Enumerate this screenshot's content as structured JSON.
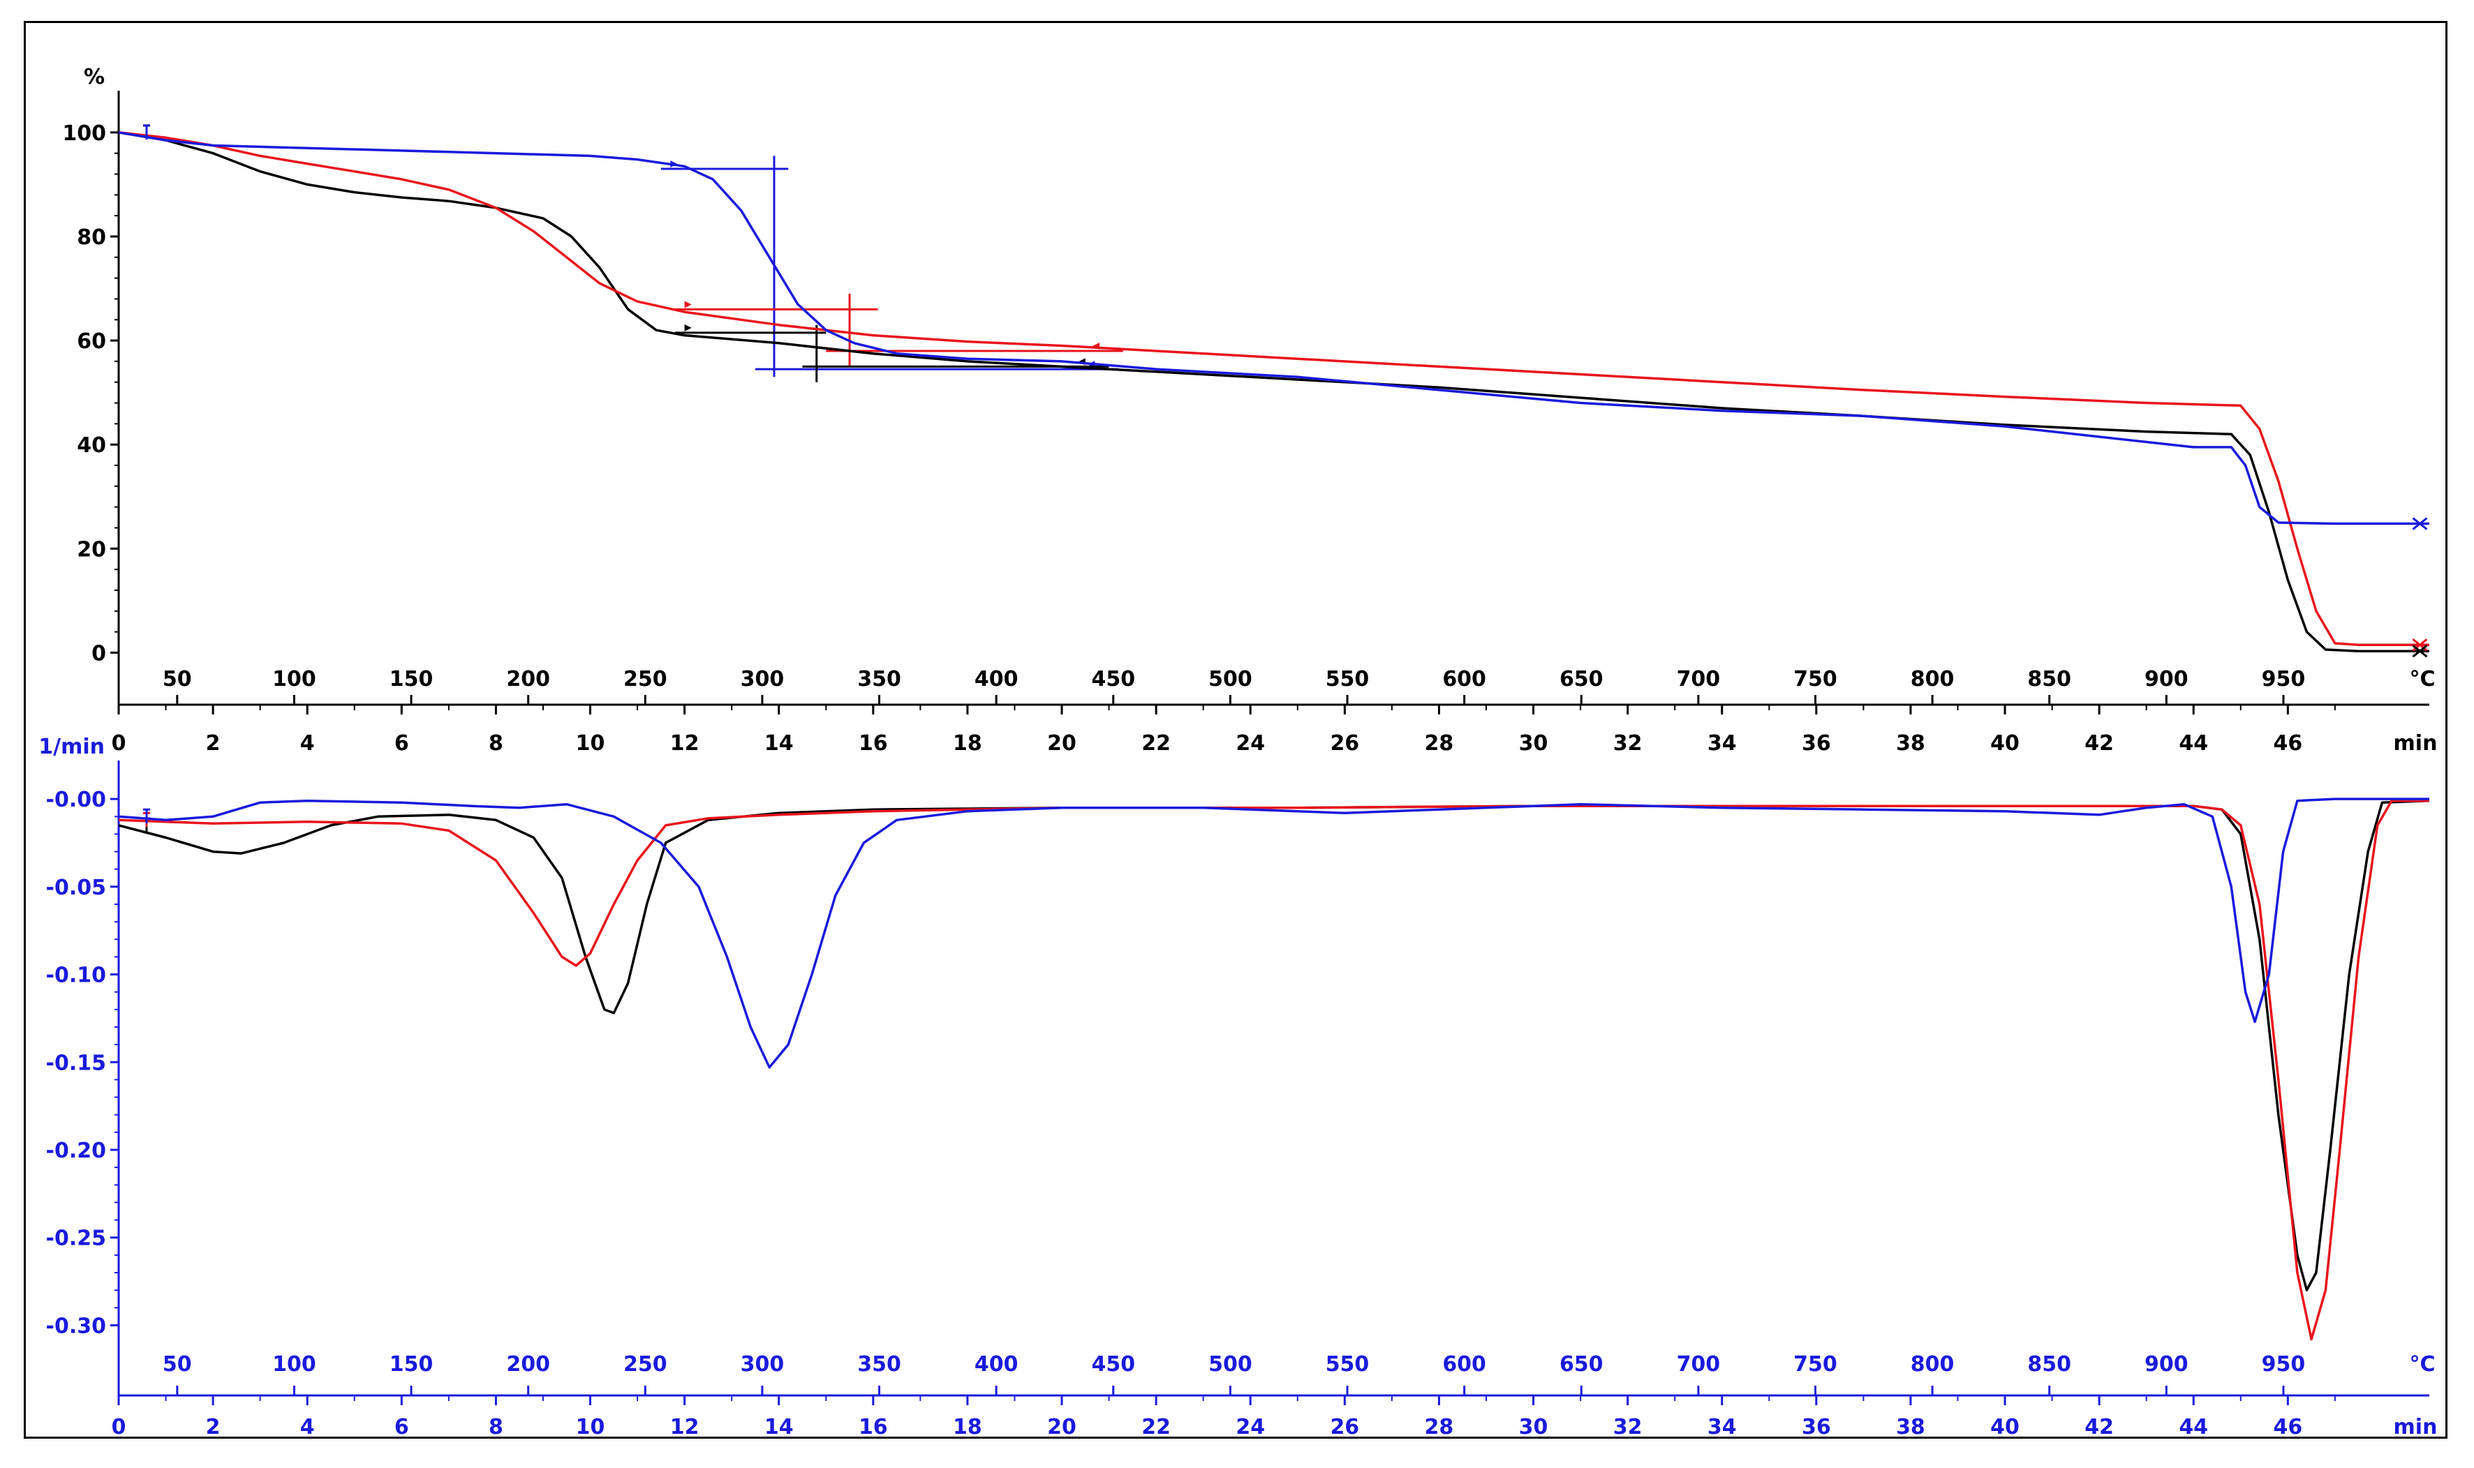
{
  "colors": {
    "black": "#000000",
    "red": "#e8141c",
    "blue": "#1a1adc",
    "lower_axis": "#1a1adc",
    "frame": "#000000"
  },
  "chart_data": [
    {
      "type": "line",
      "ylabel": "%",
      "ylim": [
        -10,
        104
      ],
      "yticks": [
        100,
        80,
        60,
        40,
        20,
        0
      ],
      "temp_axis": {
        "unit": "°C",
        "ticks": [
          50,
          100,
          150,
          200,
          250,
          300,
          350,
          400,
          450,
          500,
          550,
          600,
          650,
          700,
          750,
          800,
          850,
          900,
          950
        ]
      },
      "time_axis": {
        "unit": "min",
        "ticks": [
          0,
          2,
          4,
          6,
          8,
          10,
          12,
          14,
          16,
          18,
          20,
          22,
          24,
          26,
          28,
          30,
          32,
          34,
          36,
          38,
          40,
          42,
          44,
          46
        ]
      },
      "xlim_min": [
        0,
        49
      ],
      "series": [
        {
          "color": "black",
          "points": [
            [
              0,
              100
            ],
            [
              1,
              98.5
            ],
            [
              2,
              96
            ],
            [
              3,
              92.5
            ],
            [
              4,
              90
            ],
            [
              5,
              88.5
            ],
            [
              6,
              87.5
            ],
            [
              7,
              86.8
            ],
            [
              8,
              85.5
            ],
            [
              9,
              83.5
            ],
            [
              9.6,
              80
            ],
            [
              10.2,
              74
            ],
            [
              10.8,
              66
            ],
            [
              11.4,
              62
            ],
            [
              12,
              61
            ],
            [
              14,
              59.5
            ],
            [
              16,
              57.5
            ],
            [
              18,
              56
            ],
            [
              20,
              55
            ],
            [
              22,
              54
            ],
            [
              25,
              52.5
            ],
            [
              28,
              51
            ],
            [
              31,
              49
            ],
            [
              34,
              47
            ],
            [
              37,
              45.5
            ],
            [
              40,
              43.8
            ],
            [
              43,
              42.5
            ],
            [
              44.8,
              42
            ],
            [
              45.2,
              38
            ],
            [
              45.6,
              27
            ],
            [
              46,
              14
            ],
            [
              46.4,
              4
            ],
            [
              46.8,
              0.6
            ],
            [
              47.5,
              0.3
            ],
            [
              49,
              0.3
            ]
          ]
        },
        {
          "color": "red",
          "points": [
            [
              0,
              100
            ],
            [
              1,
              99
            ],
            [
              2,
              97.5
            ],
            [
              3,
              95.5
            ],
            [
              4,
              94
            ],
            [
              5,
              92.5
            ],
            [
              6,
              91
            ],
            [
              7,
              89
            ],
            [
              8,
              85.5
            ],
            [
              8.8,
              81
            ],
            [
              9.5,
              76
            ],
            [
              10.2,
              71
            ],
            [
              11,
              67.5
            ],
            [
              12,
              65.5
            ],
            [
              14,
              63
            ],
            [
              16,
              61
            ],
            [
              18,
              59.8
            ],
            [
              20,
              59
            ],
            [
              22,
              58
            ],
            [
              25,
              56.5
            ],
            [
              28,
              55
            ],
            [
              31,
              53.5
            ],
            [
              34,
              52
            ],
            [
              37,
              50.5
            ],
            [
              40,
              49.2
            ],
            [
              43,
              48
            ],
            [
              45,
              47.5
            ],
            [
              45.4,
              43
            ],
            [
              45.8,
              33
            ],
            [
              46.2,
              20
            ],
            [
              46.6,
              8
            ],
            [
              47,
              1.8
            ],
            [
              47.5,
              1.5
            ],
            [
              49,
              1.5
            ]
          ]
        },
        {
          "color": "blue",
          "points": [
            [
              0,
              100
            ],
            [
              1,
              98.5
            ],
            [
              2,
              97.5
            ],
            [
              4,
              97
            ],
            [
              6,
              96.5
            ],
            [
              8,
              96
            ],
            [
              10,
              95.5
            ],
            [
              11,
              94.8
            ],
            [
              12,
              93.5
            ],
            [
              12.6,
              91
            ],
            [
              13.2,
              85
            ],
            [
              13.8,
              76
            ],
            [
              14.4,
              67
            ],
            [
              15,
              62
            ],
            [
              15.6,
              59.5
            ],
            [
              16.5,
              57.5
            ],
            [
              18,
              56.5
            ],
            [
              20,
              56
            ],
            [
              22,
              54.5
            ],
            [
              25,
              53
            ],
            [
              28,
              50.5
            ],
            [
              31,
              48
            ],
            [
              34,
              46.5
            ],
            [
              37,
              45.5
            ],
            [
              40,
              43.5
            ],
            [
              42,
              41.5
            ],
            [
              44,
              39.5
            ],
            [
              44.8,
              39.5
            ],
            [
              45.1,
              36
            ],
            [
              45.4,
              28
            ],
            [
              45.8,
              25
            ],
            [
              47,
              24.8
            ],
            [
              49,
              24.8
            ]
          ]
        }
      ],
      "annotations": [
        {
          "color": "blue",
          "hline": {
            "y": 93,
            "x": [
              11.5,
              14.2
            ]
          },
          "vline": {
            "x": 13.9,
            "y": [
              53,
              95.5
            ]
          },
          "hline2": {
            "y": 54.5,
            "x": [
              13.5,
              21.2
            ]
          }
        },
        {
          "color": "red",
          "hline": {
            "y": 66,
            "x": [
              11.8,
              16.1
            ]
          },
          "vline": {
            "x": 15.5,
            "y": [
              55,
              69
            ]
          },
          "hline2": {
            "y": 58,
            "x": [
              15,
              21.3
            ]
          }
        },
        {
          "color": "black",
          "hline": {
            "y": 61.5,
            "x": [
              11.8,
              15
            ]
          },
          "vline": {
            "x": 14.8,
            "y": [
              52,
              63
            ]
          },
          "hline2": {
            "y": 55,
            "x": [
              14.5,
              21
            ]
          }
        }
      ],
      "end_markers": [
        {
          "color": "blue",
          "x": 48.8,
          "y": 24.8
        },
        {
          "color": "red",
          "x": 48.8,
          "y": 1.5
        },
        {
          "color": "black",
          "x": 48.8,
          "y": 0.3
        }
      ]
    },
    {
      "type": "line",
      "ylabel": "1/min",
      "ylim": [
        -0.34,
        0.01
      ],
      "yticks": [
        -0.0,
        -0.05,
        -0.1,
        -0.15,
        -0.2,
        -0.25,
        -0.3
      ],
      "ytick_labels": [
        "-0.00",
        "-0.05",
        "-0.10",
        "-0.15",
        "-0.20",
        "-0.25",
        "-0.30"
      ],
      "temp_axis": {
        "unit": "°C",
        "ticks": [
          50,
          100,
          150,
          200,
          250,
          300,
          350,
          400,
          450,
          500,
          550,
          600,
          650,
          700,
          750,
          800,
          850,
          900,
          950
        ]
      },
      "time_axis": {
        "unit": "min",
        "ticks": [
          0,
          2,
          4,
          6,
          8,
          10,
          12,
          14,
          16,
          18,
          20,
          22,
          24,
          26,
          28,
          30,
          32,
          34,
          36,
          38,
          40,
          42,
          44,
          46
        ]
      },
      "xlim_min": [
        0,
        49
      ],
      "series": [
        {
          "color": "black",
          "points": [
            [
              0,
              -0.015
            ],
            [
              1,
              -0.022
            ],
            [
              2,
              -0.03
            ],
            [
              2.6,
              -0.031
            ],
            [
              3.5,
              -0.025
            ],
            [
              4.5,
              -0.015
            ],
            [
              5.5,
              -0.01
            ],
            [
              7,
              -0.009
            ],
            [
              8,
              -0.012
            ],
            [
              8.8,
              -0.022
            ],
            [
              9.4,
              -0.045
            ],
            [
              9.9,
              -0.09
            ],
            [
              10.3,
              -0.12
            ],
            [
              10.5,
              -0.122
            ],
            [
              10.8,
              -0.105
            ],
            [
              11.2,
              -0.06
            ],
            [
              11.6,
              -0.025
            ],
            [
              12.5,
              -0.012
            ],
            [
              14,
              -0.008
            ],
            [
              16,
              -0.006
            ],
            [
              20,
              -0.005
            ],
            [
              25,
              -0.005
            ],
            [
              30,
              -0.004
            ],
            [
              35,
              -0.004
            ],
            [
              40,
              -0.004
            ],
            [
              43,
              -0.004
            ],
            [
              44,
              -0.004
            ],
            [
              44.6,
              -0.006
            ],
            [
              45,
              -0.02
            ],
            [
              45.4,
              -0.08
            ],
            [
              45.8,
              -0.18
            ],
            [
              46.2,
              -0.26
            ],
            [
              46.4,
              -0.28
            ],
            [
              46.6,
              -0.27
            ],
            [
              46.9,
              -0.2
            ],
            [
              47.3,
              -0.1
            ],
            [
              47.7,
              -0.03
            ],
            [
              48,
              -0.002
            ],
            [
              49,
              -0.001
            ]
          ]
        },
        {
          "color": "red",
          "points": [
            [
              0,
              -0.012
            ],
            [
              2,
              -0.014
            ],
            [
              4,
              -0.013
            ],
            [
              6,
              -0.014
            ],
            [
              7,
              -0.018
            ],
            [
              8,
              -0.035
            ],
            [
              8.8,
              -0.065
            ],
            [
              9.4,
              -0.09
            ],
            [
              9.7,
              -0.095
            ],
            [
              10,
              -0.088
            ],
            [
              10.5,
              -0.06
            ],
            [
              11,
              -0.035
            ],
            [
              11.6,
              -0.015
            ],
            [
              12.5,
              -0.011
            ],
            [
              14,
              -0.009
            ],
            [
              16,
              -0.007
            ],
            [
              20,
              -0.005
            ],
            [
              25,
              -0.005
            ],
            [
              30,
              -0.004
            ],
            [
              35,
              -0.004
            ],
            [
              40,
              -0.004
            ],
            [
              44,
              -0.004
            ],
            [
              44.6,
              -0.006
            ],
            [
              45,
              -0.015
            ],
            [
              45.4,
              -0.06
            ],
            [
              45.8,
              -0.16
            ],
            [
              46.2,
              -0.27
            ],
            [
              46.5,
              -0.308
            ],
            [
              46.8,
              -0.28
            ],
            [
              47.1,
              -0.2
            ],
            [
              47.5,
              -0.09
            ],
            [
              47.9,
              -0.015
            ],
            [
              48.2,
              -0.001
            ],
            [
              49,
              -0.001
            ]
          ]
        },
        {
          "color": "blue",
          "points": [
            [
              0,
              -0.01
            ],
            [
              1,
              -0.012
            ],
            [
              2,
              -0.01
            ],
            [
              3,
              -0.002
            ],
            [
              4,
              -0.001
            ],
            [
              6,
              -0.002
            ],
            [
              7.5,
              -0.004
            ],
            [
              8.5,
              -0.005
            ],
            [
              9.5,
              -0.003
            ],
            [
              10.5,
              -0.01
            ],
            [
              11.5,
              -0.025
            ],
            [
              12.3,
              -0.05
            ],
            [
              12.9,
              -0.09
            ],
            [
              13.4,
              -0.13
            ],
            [
              13.8,
              -0.153
            ],
            [
              14.2,
              -0.14
            ],
            [
              14.7,
              -0.1
            ],
            [
              15.2,
              -0.055
            ],
            [
              15.8,
              -0.025
            ],
            [
              16.5,
              -0.012
            ],
            [
              18,
              -0.007
            ],
            [
              20,
              -0.005
            ],
            [
              23,
              -0.005
            ],
            [
              26,
              -0.008
            ],
            [
              28,
              -0.006
            ],
            [
              31,
              -0.003
            ],
            [
              34,
              -0.005
            ],
            [
              37,
              -0.006
            ],
            [
              40,
              -0.007
            ],
            [
              42,
              -0.009
            ],
            [
              43,
              -0.005
            ],
            [
              43.8,
              -0.003
            ],
            [
              44.4,
              -0.01
            ],
            [
              44.8,
              -0.05
            ],
            [
              45.1,
              -0.11
            ],
            [
              45.3,
              -0.127
            ],
            [
              45.6,
              -0.1
            ],
            [
              45.9,
              -0.03
            ],
            [
              46.2,
              -0.001
            ],
            [
              47,
              0.0
            ],
            [
              49,
              0.0
            ]
          ]
        }
      ]
    }
  ]
}
